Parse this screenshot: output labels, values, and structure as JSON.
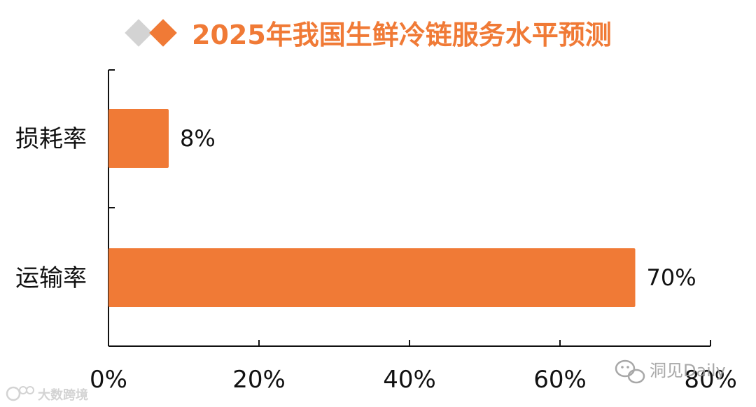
{
  "colors": {
    "accent": "#F07A36",
    "title": "#F07A36",
    "diamond_grey": "#D3D3D3",
    "axis": "#111111",
    "watermark_grey": "#9A9A9A",
    "watermark_left": "#CFCFCF"
  },
  "chart_data": {
    "type": "bar",
    "orientation": "horizontal",
    "title": "2025年我国生鲜冷链服务水平预测",
    "categories": [
      "损耗率",
      "运输率"
    ],
    "values": [
      8,
      70
    ],
    "value_labels": [
      "8%",
      "70%"
    ],
    "xlim": [
      0,
      80
    ],
    "x_ticks": [
      0,
      20,
      40,
      60,
      80
    ],
    "x_tick_labels": [
      "0%",
      "20%",
      "40%",
      "60%",
      "80%"
    ],
    "xlabel": "",
    "ylabel": "",
    "grid": false,
    "legend": "none"
  },
  "watermarks": {
    "right_text": "洞见Daily",
    "right_icon": "wechat-icon",
    "left_text": "大数跨境",
    "left_icon": "logo-icon"
  }
}
